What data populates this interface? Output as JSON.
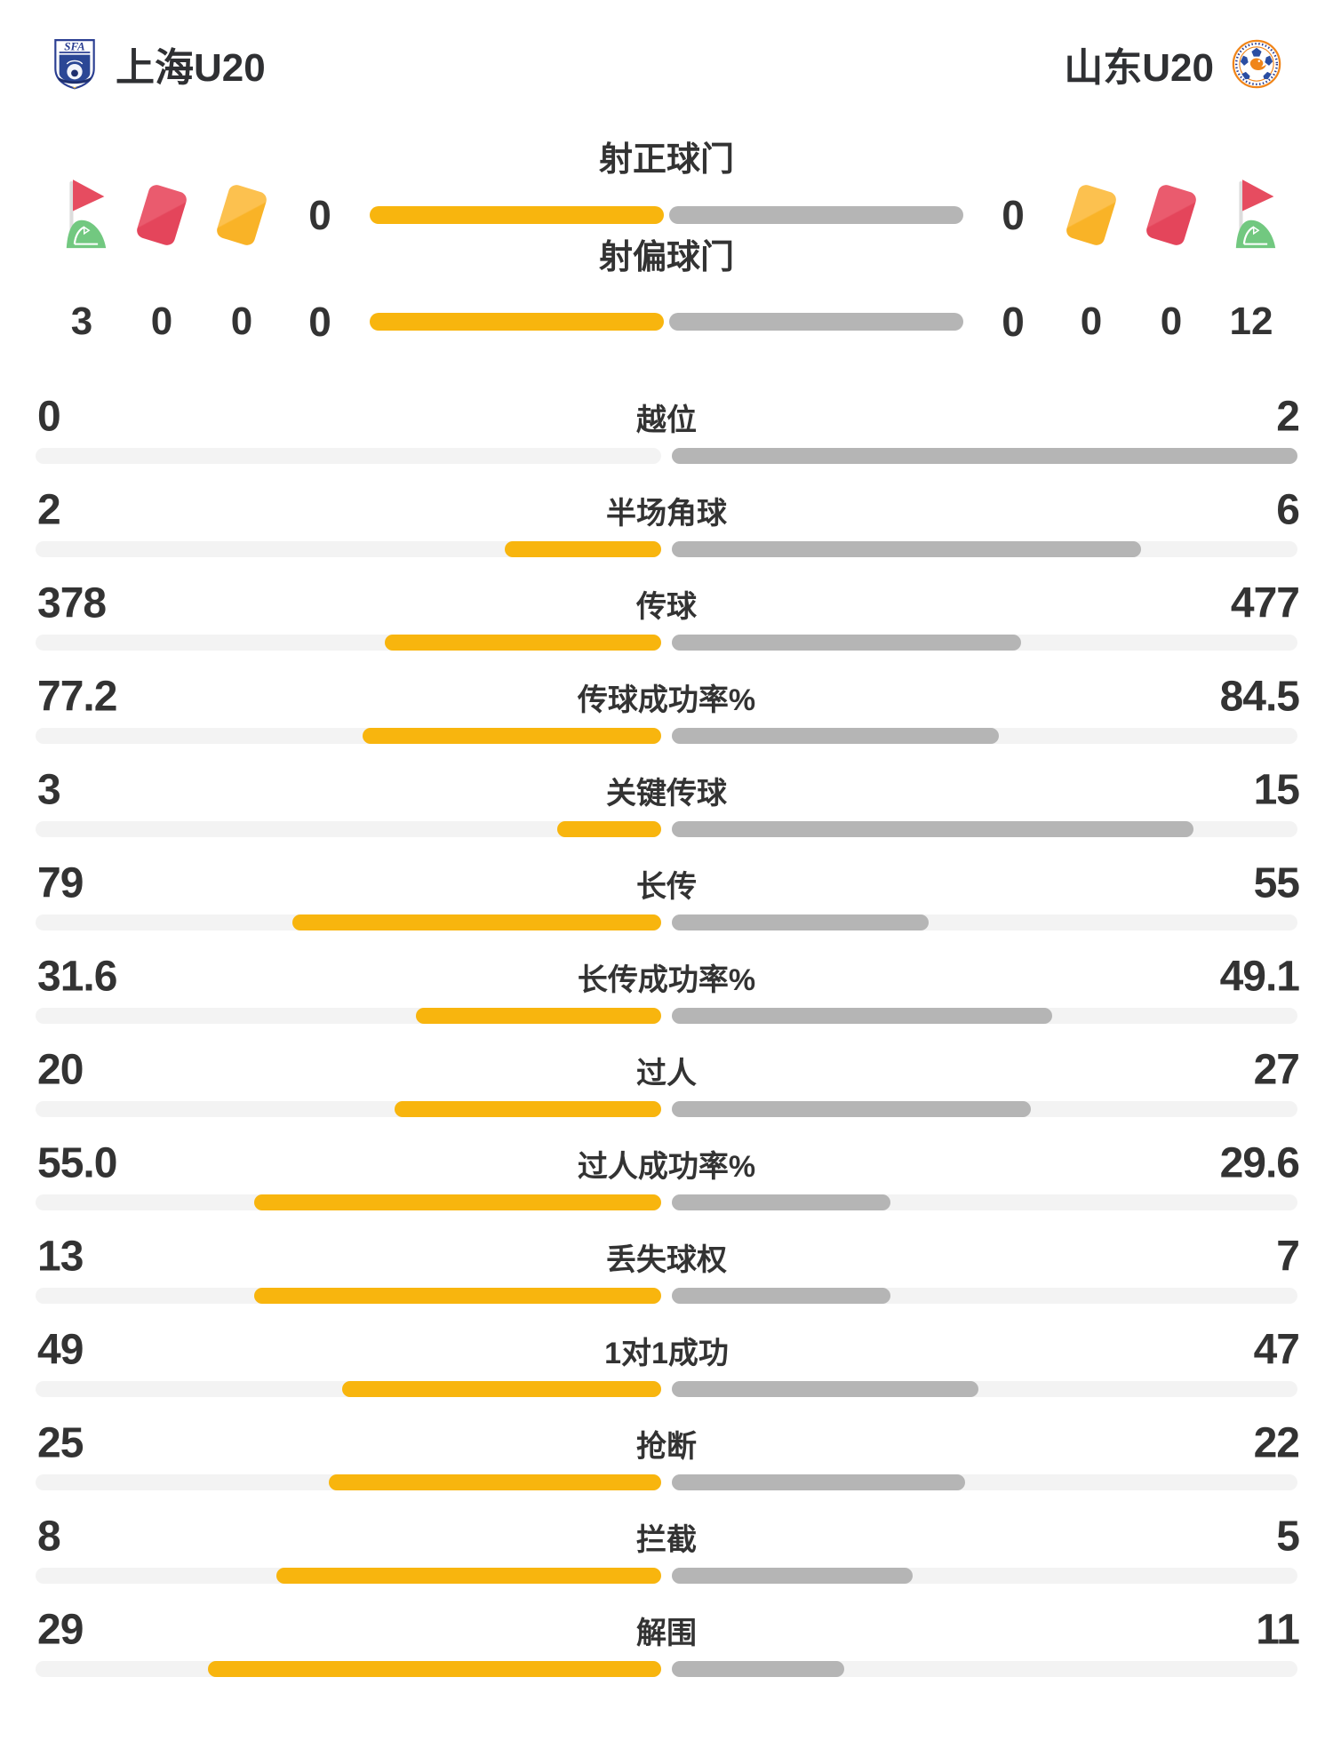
{
  "header": {
    "home_team": "上海U20",
    "away_team": "山东U20",
    "home_badge_text": "SFA"
  },
  "top": {
    "rows": [
      {
        "label": "射正球门",
        "home": "0",
        "away": "0"
      },
      {
        "label": "射偏球门",
        "home": "0",
        "away": "0"
      }
    ],
    "home_counts": {
      "corner": "3",
      "red": "0",
      "yellow": "0"
    },
    "away_counts": {
      "yellow": "0",
      "red": "0",
      "corner": "12"
    }
  },
  "stats": [
    {
      "label": "越位",
      "home": "0",
      "away": "2"
    },
    {
      "label": "半场角球",
      "home": "2",
      "away": "6"
    },
    {
      "label": "传球",
      "home": "378",
      "away": "477"
    },
    {
      "label": "传球成功率%",
      "home": "77.2",
      "away": "84.5"
    },
    {
      "label": "关键传球",
      "home": "3",
      "away": "15"
    },
    {
      "label": "长传",
      "home": "79",
      "away": "55"
    },
    {
      "label": "长传成功率%",
      "home": "31.6",
      "away": "49.1"
    },
    {
      "label": "过人",
      "home": "20",
      "away": "27"
    },
    {
      "label": "过人成功率%",
      "home": "55.0",
      "away": "29.6"
    },
    {
      "label": "丢失球权",
      "home": "13",
      "away": "7"
    },
    {
      "label": "1对1成功",
      "home": "49",
      "away": "47"
    },
    {
      "label": "抢断",
      "home": "25",
      "away": "22"
    },
    {
      "label": "拦截",
      "home": "8",
      "away": "5"
    },
    {
      "label": "解围",
      "home": "29",
      "away": "11"
    }
  ],
  "colors": {
    "home_fill": "#f8b50e",
    "away_fill": "#b5b5b5",
    "track": "#f3f3f3",
    "text": "#333333",
    "card_red": "#e64c60",
    "card_yellow": "#fab62f",
    "flag_green": "#72c880",
    "flag_pole": "#dddddd",
    "badge_navy": "#2b3f92",
    "badge_orange": "#f08519"
  },
  "chart_data": {
    "type": "bar",
    "orientation": "horizontal-paired",
    "title": "上海U20 vs 山东U20 比赛数据",
    "teams": [
      "上海U20",
      "山东U20"
    ],
    "categories": [
      "射正球门",
      "射偏球门",
      "越位",
      "半场角球",
      "传球",
      "传球成功率%",
      "关键传球",
      "长传",
      "长传成功率%",
      "过人",
      "过人成功率%",
      "丢失球权",
      "1对1成功",
      "抢断",
      "拦截",
      "解围"
    ],
    "series": [
      {
        "name": "上海U20",
        "color": "#f8b50e",
        "values": [
          0,
          0,
          0,
          2,
          378,
          77.2,
          3,
          79,
          31.6,
          20,
          55.0,
          13,
          49,
          25,
          8,
          29
        ]
      },
      {
        "name": "山东U20",
        "color": "#b5b5b5",
        "values": [
          0,
          0,
          2,
          6,
          477,
          84.5,
          15,
          55,
          49.1,
          27,
          29.6,
          7,
          47,
          22,
          5,
          11
        ]
      }
    ],
    "card_and_corner_counts": {
      "corner_flags": {
        "上海U20": 3,
        "山东U20": 12
      },
      "red_cards": {
        "上海U20": 0,
        "山东U20": 0
      },
      "yellow_cards": {
        "上海U20": 0,
        "山东U20": 0
      }
    },
    "bar_rule": "each bar half length = value / (home+away); 0-0 renders both halves full",
    "legend_position": "none",
    "grid": false
  }
}
